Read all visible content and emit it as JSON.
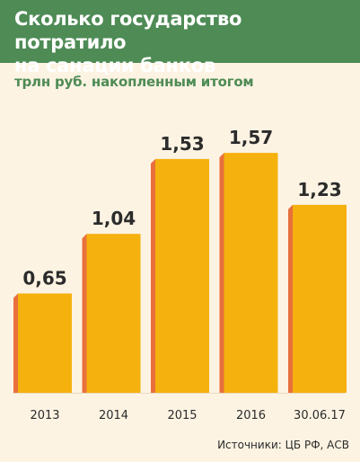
{
  "header": {
    "title_line1": "Сколько государство потратило",
    "title_line2": "на санации банков"
  },
  "subtitle": "трлн руб. накопленным итогом",
  "source": "Источники: ЦБ РФ, АСВ",
  "colors": {
    "header_bg": "#4e8b55",
    "bar_face": "#f5b10e",
    "bar_side": "#e8703c",
    "background": "#fdf3e3"
  },
  "chart_data": {
    "type": "bar",
    "categories": [
      "2013",
      "2014",
      "2015",
      "2016",
      "30.06.17"
    ],
    "values": [
      0.65,
      1.04,
      1.53,
      1.57,
      1.23
    ],
    "value_labels": [
      "0,65",
      "1,04",
      "1,53",
      "1,57",
      "1,23"
    ],
    "title": "Сколько государство потратило на санации банков",
    "xlabel": "",
    "ylabel": "трлн руб. накопленным итогом",
    "grid": false,
    "legend": "none"
  }
}
